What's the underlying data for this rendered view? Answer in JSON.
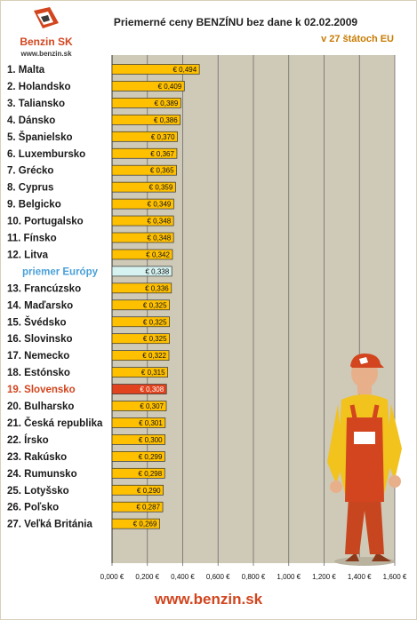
{
  "header": {
    "title": "Priemerné ceny BENZÍNU bez dane k 02.02.2009",
    "subtitle": "v 27 štátoch EU",
    "logo_text": "Benzin SK",
    "logo_url": "www.benzin.sk"
  },
  "footer": {
    "site": "www.benzin.sk"
  },
  "colors": {
    "plot_bg": "#cfc9b7",
    "bar": "#ffc000",
    "bar_highlight": "#e0431d",
    "bar_average": "#d6f3f1",
    "label_highlight": "#d2451e",
    "label_average": "#4aa0d8",
    "grid": "#6b6b6b"
  },
  "chart_data": {
    "type": "bar",
    "orientation": "horizontal",
    "title": "Priemerné ceny BENZÍNU bez dane k 02.02.2009",
    "subtitle": "v 27 štátoch EU",
    "categories": [
      "1. Malta",
      "2. Holandsko",
      "3. Taliansko",
      "4. Dánsko",
      "5. Španielsko",
      "6. Luxembursko",
      "7. Grécko",
      "8. Cyprus",
      "9. Belgicko",
      "10. Portugalsko",
      "11. Fínsko",
      "12. Litva",
      "priemer Európy",
      "13. Francúzsko",
      "14. Maďarsko",
      "15. Švédsko",
      "16. Slovinsko",
      "17. Nemecko",
      "18. Estónsko",
      "19. Slovensko",
      "20. Bulharsko",
      "21. Česká republika",
      "22. Írsko",
      "23. Rakúsko",
      "24. Rumunsko",
      "25. Lotyšsko",
      "26. Poľsko",
      "27. Veľká Británia"
    ],
    "values": [
      0.494,
      0.409,
      0.389,
      0.386,
      0.37,
      0.367,
      0.365,
      0.359,
      0.349,
      0.348,
      0.348,
      0.342,
      0.338,
      0.336,
      0.325,
      0.325,
      0.325,
      0.322,
      0.315,
      0.308,
      0.307,
      0.301,
      0.3,
      0.299,
      0.298,
      0.29,
      0.287,
      0.269
    ],
    "value_labels": [
      "€ 0,494",
      "€ 0,409",
      "€ 0,389",
      "€ 0,386",
      "€ 0,370",
      "€ 0,367",
      "€ 0,365",
      "€ 0,359",
      "€ 0,349",
      "€ 0,348",
      "€ 0,348",
      "€ 0,342",
      "€ 0,338",
      "€ 0,336",
      "€ 0,325",
      "€ 0,325",
      "€ 0,325",
      "€ 0,322",
      "€ 0,315",
      "€ 0,308",
      "€ 0,307",
      "€ 0,301",
      "€ 0,300",
      "€ 0,299",
      "€ 0,298",
      "€ 0,290",
      "€ 0,287",
      "€ 0,269"
    ],
    "highlight_index": 19,
    "average_index": 12,
    "xlim": [
      0,
      1.6
    ],
    "x_ticks": [
      0,
      0.2,
      0.4,
      0.6,
      0.8,
      1.0,
      1.2,
      1.4,
      1.6
    ],
    "x_tick_labels": [
      "0,000 €",
      "0,200 €",
      "0,400 €",
      "0,600 €",
      "0,800 €",
      "1,000 €",
      "1,200 €",
      "1,400 €",
      "1,600 €"
    ],
    "grid": true,
    "legend": "none"
  }
}
